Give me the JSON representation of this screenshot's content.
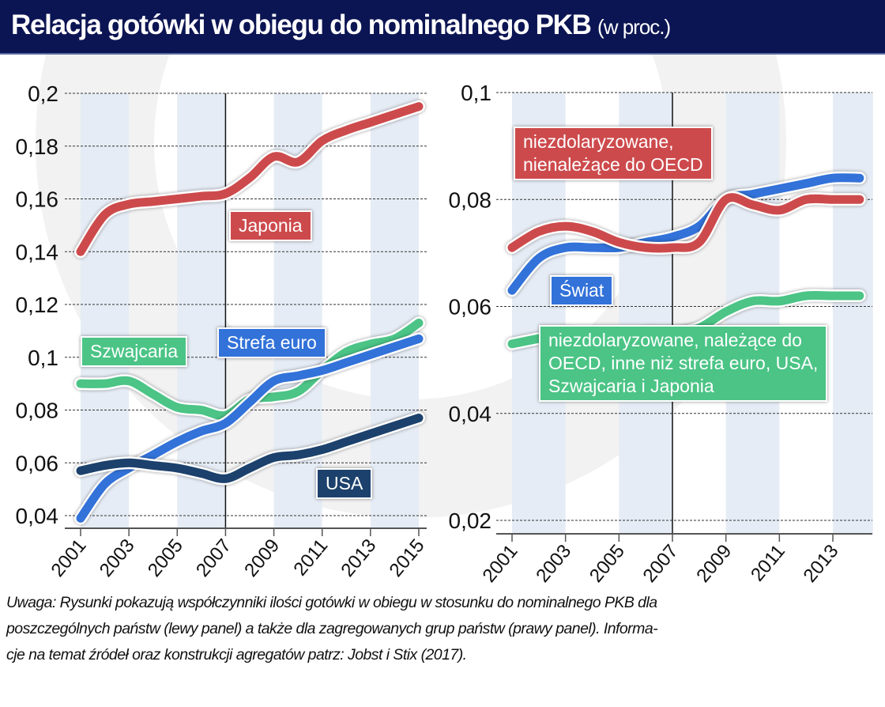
{
  "header": {
    "title": "Relacja gotówki w obiegu do nominalnego PKB",
    "unit": "(w proc.)"
  },
  "colors": {
    "japonia": "#cd4a4c",
    "szwajcaria": "#4bc486",
    "strefa_euro": "#3272d9",
    "usa": "#1c416c",
    "title_bg": "#0c1553",
    "stripe": "#e6ecf5"
  },
  "chart_data": [
    {
      "type": "line",
      "title": "lewy panel",
      "x": [
        2001,
        2002,
        2003,
        2004,
        2005,
        2006,
        2007,
        2008,
        2009,
        2010,
        2011,
        2012,
        2013,
        2014,
        2015
      ],
      "xticks": [
        "2001",
        "2003",
        "2005",
        "2007",
        "2009",
        "2011",
        "2013",
        "2015"
      ],
      "yticks": [
        "0,04",
        "0,06",
        "0,08",
        "0,1",
        "0,12",
        "0,14",
        "0,16",
        "0,18",
        "0,2"
      ],
      "ylim": [
        0.04,
        0.2
      ],
      "grid": true,
      "marker_year": 2007,
      "series": [
        {
          "name": "Japonia",
          "color": "#cd4a4c",
          "values": [
            0.14,
            0.154,
            0.158,
            0.159,
            0.16,
            0.161,
            0.162,
            0.168,
            0.176,
            0.174,
            0.182,
            0.186,
            0.189,
            0.192,
            0.195
          ]
        },
        {
          "name": "Szwajcaria",
          "color": "#4bc486",
          "values": [
            0.09,
            0.09,
            0.091,
            0.086,
            0.081,
            0.08,
            0.078,
            0.084,
            0.085,
            0.087,
            0.095,
            0.102,
            0.105,
            0.107,
            0.113
          ]
        },
        {
          "name": "Strefa euro",
          "color": "#3272d9",
          "values": [
            0.039,
            0.052,
            0.058,
            0.063,
            0.068,
            0.072,
            0.075,
            0.083,
            0.091,
            0.093,
            0.095,
            0.098,
            0.101,
            0.104,
            0.107
          ]
        },
        {
          "name": "USA",
          "color": "#1c416c",
          "values": [
            0.057,
            0.059,
            0.06,
            0.059,
            0.058,
            0.056,
            0.054,
            0.058,
            0.062,
            0.063,
            0.065,
            0.068,
            0.071,
            0.074,
            0.077
          ]
        }
      ]
    },
    {
      "type": "line",
      "title": "prawy panel",
      "x": [
        2001,
        2002,
        2003,
        2004,
        2005,
        2006,
        2007,
        2008,
        2009,
        2010,
        2011,
        2012,
        2013,
        2014
      ],
      "xticks": [
        "2001",
        "2003",
        "2005",
        "2007",
        "2009",
        "2011",
        "2013"
      ],
      "yticks": [
        "0,02",
        "0,04",
        "0,06",
        "0,08",
        "0,1"
      ],
      "ylim": [
        0.02,
        0.1
      ],
      "grid": true,
      "marker_year": 2007,
      "series": [
        {
          "name": "Świat",
          "color": "#3272d9",
          "values": [
            0.063,
            0.069,
            0.071,
            0.071,
            0.071,
            0.072,
            0.073,
            0.075,
            0.08,
            0.081,
            0.082,
            0.083,
            0.084,
            0.084
          ]
        },
        {
          "name": "niezdolaryzowane, nienależące do OECD",
          "color": "#cd4a4c",
          "values": [
            0.071,
            0.074,
            0.075,
            0.074,
            0.072,
            0.071,
            0.071,
            0.072,
            0.08,
            0.079,
            0.078,
            0.08,
            0.08,
            0.08
          ]
        },
        {
          "name": "niezdolaryzowane, należące do OECD, inne niż strefa euro, USA, Szwajcaria i Japonia",
          "color": "#4bc486",
          "values": [
            0.053,
            0.054,
            0.055,
            0.054,
            0.054,
            0.055,
            0.055,
            0.056,
            0.059,
            0.061,
            0.061,
            0.062,
            0.062,
            0.062
          ]
        }
      ]
    }
  ],
  "labels": {
    "japonia": "Japonia",
    "szwajcaria": "Szwajcaria",
    "strefa_euro": "Strefa euro",
    "usa": "USA",
    "swiat": "Świat",
    "non_oecd_1": "niezdolaryzowane,",
    "non_oecd_2": "nienależące do OECD",
    "oecd_1": "niezdolaryzowane, należące do",
    "oecd_2": "OECD, inne niż strefa euro, USA,",
    "oecd_3": "Szwajcaria i Japonia"
  },
  "note": {
    "line1": "Uwaga: Rysunki pokazują współczynniki ilości gotówki w obiegu w stosunku do nominalnego PKB dla",
    "line2": "poszczególnych państw (lewy panel) a także dla zagregowanych grup państw (prawy panel). Informa-",
    "line3": "cje na temat źródeł oraz konstrukcji agregatów patrz: Jobst i Stix (2017)."
  }
}
